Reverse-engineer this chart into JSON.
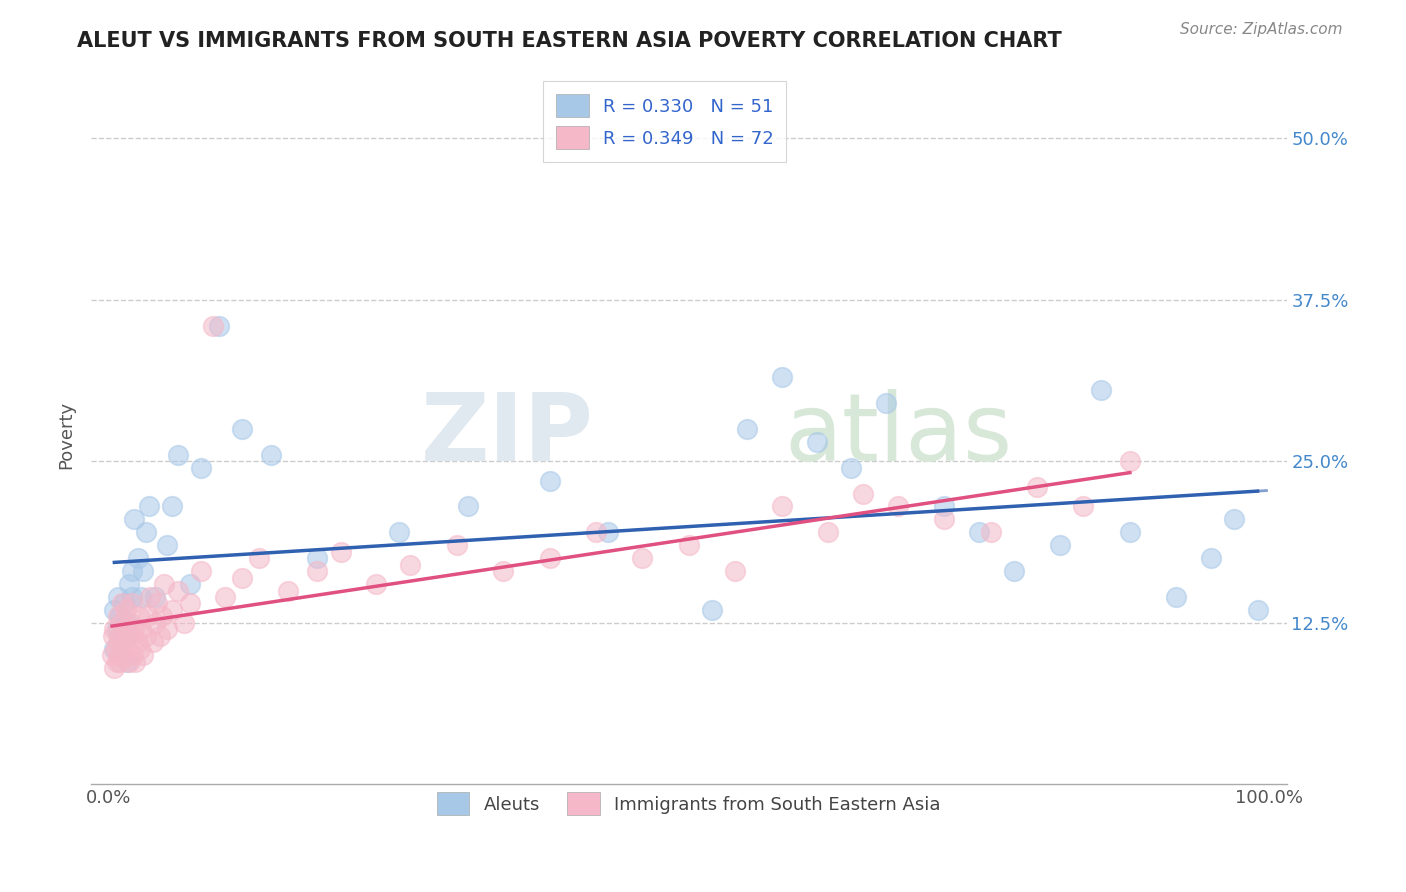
{
  "title": "ALEUT VS IMMIGRANTS FROM SOUTH EASTERN ASIA POVERTY CORRELATION CHART",
  "source": "Source: ZipAtlas.com",
  "ylabel": "Poverty",
  "ytick_values": [
    0.125,
    0.25,
    0.375,
    0.5
  ],
  "ytick_labels": [
    "12.5%",
    "25.0%",
    "37.5%",
    "50.0%"
  ],
  "r1": 0.33,
  "n1": 51,
  "r2": 0.349,
  "n2": 72,
  "color_blue": "#a8c8e8",
  "color_pink": "#f4b8c8",
  "color_blue_line": "#3060b0",
  "color_pink_line": "#e05080",
  "watermark": "ZIPatlas",
  "background_color": "#ffffff",
  "aleuts_x": [
    0.005,
    0.005,
    0.007,
    0.008,
    0.01,
    0.01,
    0.012,
    0.013,
    0.014,
    0.015,
    0.016,
    0.017,
    0.018,
    0.02,
    0.02,
    0.022,
    0.025,
    0.028,
    0.03,
    0.032,
    0.035,
    0.04,
    0.05,
    0.055,
    0.06,
    0.07,
    0.08,
    0.095,
    0.115,
    0.14,
    0.18,
    0.25,
    0.31,
    0.38,
    0.43,
    0.52,
    0.55,
    0.58,
    0.61,
    0.64,
    0.67,
    0.72,
    0.75,
    0.78,
    0.82,
    0.855,
    0.88,
    0.92,
    0.95,
    0.97,
    0.99
  ],
  "aleuts_y": [
    0.105,
    0.135,
    0.12,
    0.145,
    0.115,
    0.13,
    0.11,
    0.14,
    0.125,
    0.115,
    0.095,
    0.125,
    0.155,
    0.145,
    0.165,
    0.205,
    0.175,
    0.145,
    0.165,
    0.195,
    0.215,
    0.145,
    0.185,
    0.215,
    0.255,
    0.155,
    0.245,
    0.355,
    0.275,
    0.255,
    0.175,
    0.195,
    0.215,
    0.235,
    0.195,
    0.135,
    0.275,
    0.315,
    0.265,
    0.245,
    0.295,
    0.215,
    0.195,
    0.165,
    0.185,
    0.305,
    0.195,
    0.145,
    0.175,
    0.205,
    0.135
  ],
  "sea_x": [
    0.003,
    0.004,
    0.005,
    0.005,
    0.006,
    0.007,
    0.008,
    0.008,
    0.009,
    0.01,
    0.01,
    0.011,
    0.012,
    0.012,
    0.013,
    0.014,
    0.015,
    0.015,
    0.016,
    0.017,
    0.018,
    0.019,
    0.02,
    0.02,
    0.021,
    0.022,
    0.023,
    0.025,
    0.026,
    0.027,
    0.028,
    0.03,
    0.032,
    0.034,
    0.036,
    0.038,
    0.04,
    0.042,
    0.044,
    0.046,
    0.048,
    0.05,
    0.055,
    0.06,
    0.065,
    0.07,
    0.08,
    0.09,
    0.1,
    0.115,
    0.13,
    0.155,
    0.18,
    0.2,
    0.23,
    0.26,
    0.3,
    0.34,
    0.38,
    0.42,
    0.46,
    0.5,
    0.54,
    0.58,
    0.62,
    0.65,
    0.68,
    0.72,
    0.76,
    0.8,
    0.84,
    0.88
  ],
  "sea_y": [
    0.1,
    0.115,
    0.09,
    0.12,
    0.105,
    0.095,
    0.11,
    0.13,
    0.1,
    0.115,
    0.095,
    0.125,
    0.105,
    0.14,
    0.115,
    0.1,
    0.12,
    0.135,
    0.105,
    0.115,
    0.095,
    0.125,
    0.115,
    0.14,
    0.1,
    0.12,
    0.095,
    0.11,
    0.13,
    0.105,
    0.12,
    0.1,
    0.115,
    0.13,
    0.145,
    0.11,
    0.125,
    0.14,
    0.115,
    0.13,
    0.155,
    0.12,
    0.135,
    0.15,
    0.125,
    0.14,
    0.165,
    0.355,
    0.145,
    0.16,
    0.175,
    0.15,
    0.165,
    0.18,
    0.155,
    0.17,
    0.185,
    0.165,
    0.175,
    0.195,
    0.175,
    0.185,
    0.165,
    0.215,
    0.195,
    0.225,
    0.215,
    0.205,
    0.195,
    0.23,
    0.215,
    0.25
  ],
  "legend_label1": "Aleuts",
  "legend_label2": "Immigrants from South Eastern Asia"
}
